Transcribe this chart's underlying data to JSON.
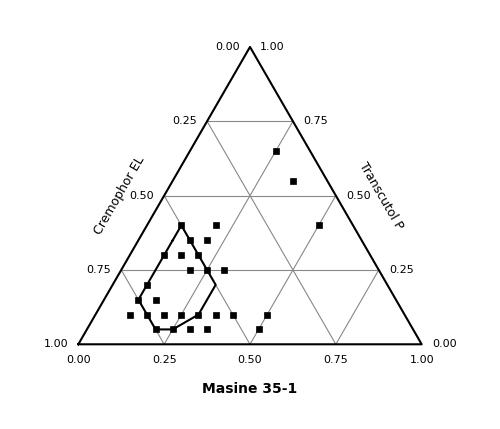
{
  "xlabel": "Masine 35-1",
  "ylabel_left": "Cremophor EL",
  "ylabel_right": "Transcutol P",
  "grid_color": "#888888",
  "point_color": "#000000",
  "tick_values": [
    0.0,
    0.25,
    0.5,
    0.75,
    1.0
  ],
  "data_points": [
    [
      0.1,
      0.6,
      0.3
    ],
    [
      0.1,
      0.5,
      0.4
    ],
    [
      0.15,
      0.55,
      0.3
    ],
    [
      0.15,
      0.5,
      0.35
    ],
    [
      0.2,
      0.55,
      0.25
    ],
    [
      0.2,
      0.5,
      0.3
    ],
    [
      0.2,
      0.45,
      0.35
    ],
    [
      0.25,
      0.5,
      0.25
    ],
    [
      0.2,
      0.4,
      0.4
    ],
    [
      0.3,
      0.45,
      0.25
    ],
    [
      0.1,
      0.7,
      0.2
    ],
    [
      0.1,
      0.75,
      0.15
    ],
    [
      0.15,
      0.7,
      0.15
    ],
    [
      0.1,
      0.8,
      0.1
    ],
    [
      0.15,
      0.75,
      0.1
    ],
    [
      0.2,
      0.75,
      0.05
    ],
    [
      0.25,
      0.7,
      0.05
    ],
    [
      0.2,
      0.7,
      0.1
    ],
    [
      0.25,
      0.65,
      0.1
    ],
    [
      0.3,
      0.6,
      0.1
    ],
    [
      0.35,
      0.55,
      0.1
    ],
    [
      0.4,
      0.5,
      0.1
    ],
    [
      0.3,
      0.65,
      0.05
    ],
    [
      0.35,
      0.6,
      0.05
    ],
    [
      0.5,
      0.45,
      0.05
    ],
    [
      0.5,
      0.4,
      0.1
    ],
    [
      0.25,
      0.1,
      0.65
    ],
    [
      0.35,
      0.1,
      0.55
    ],
    [
      0.5,
      0.1,
      0.4
    ]
  ],
  "boundary_points": [
    [
      0.1,
      0.55,
      0.35
    ],
    [
      0.1,
      0.5,
      0.4
    ],
    [
      0.15,
      0.5,
      0.35
    ],
    [
      0.2,
      0.5,
      0.3
    ],
    [
      0.25,
      0.5,
      0.25
    ],
    [
      0.3,
      0.5,
      0.2
    ],
    [
      0.3,
      0.6,
      0.1
    ],
    [
      0.25,
      0.7,
      0.05
    ],
    [
      0.2,
      0.75,
      0.05
    ],
    [
      0.15,
      0.75,
      0.1
    ],
    [
      0.1,
      0.75,
      0.15
    ],
    [
      0.1,
      0.7,
      0.2
    ],
    [
      0.1,
      0.6,
      0.3
    ],
    [
      0.1,
      0.55,
      0.35
    ]
  ],
  "figsize": [
    5.0,
    4.29
  ],
  "dpi": 100,
  "markersize": 5,
  "outer_lw": 1.5,
  "grid_lw": 0.8,
  "boundary_lw": 1.5,
  "fontsize_tick": 8,
  "fontsize_label": 9,
  "fontsize_xlabel": 10
}
